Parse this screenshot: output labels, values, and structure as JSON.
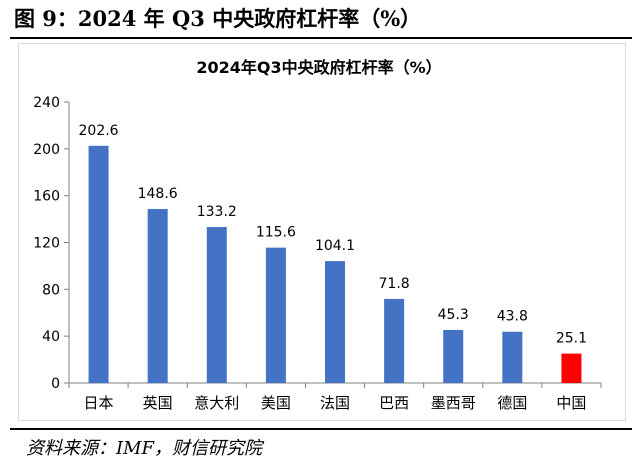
{
  "figure": {
    "title": "图 9：2024 年 Q3 中央政府杠杆率（%）",
    "source": "资料来源：IMF，财信研究院"
  },
  "colors": {
    "bar_default": "#4472C4",
    "bar_highlight": "#FF0000",
    "axis": "#808080"
  },
  "chart_data": {
    "type": "bar",
    "title": "2024年Q3中央政府杠杆率（%）",
    "xlabel": "",
    "ylabel": "",
    "categories": [
      "日本",
      "英国",
      "意大利",
      "美国",
      "法国",
      "巴西",
      "墨西哥",
      "德国",
      "中国"
    ],
    "values": [
      202.6,
      148.6,
      133.2,
      115.6,
      104.1,
      71.8,
      45.3,
      43.8,
      25.1
    ],
    "value_labels": [
      "202.6",
      "148.6",
      "133.2",
      "115.6",
      "104.1",
      "71.8",
      "45.3",
      "43.8",
      "25.1"
    ],
    "highlight_index": 8,
    "ylim": [
      0,
      240
    ],
    "yticks": [
      0,
      40,
      80,
      120,
      160,
      200,
      240
    ],
    "ytick_labels": [
      "0",
      "40",
      "80",
      "120",
      "160",
      "200",
      "240"
    ],
    "grid": false,
    "legend": "none"
  }
}
